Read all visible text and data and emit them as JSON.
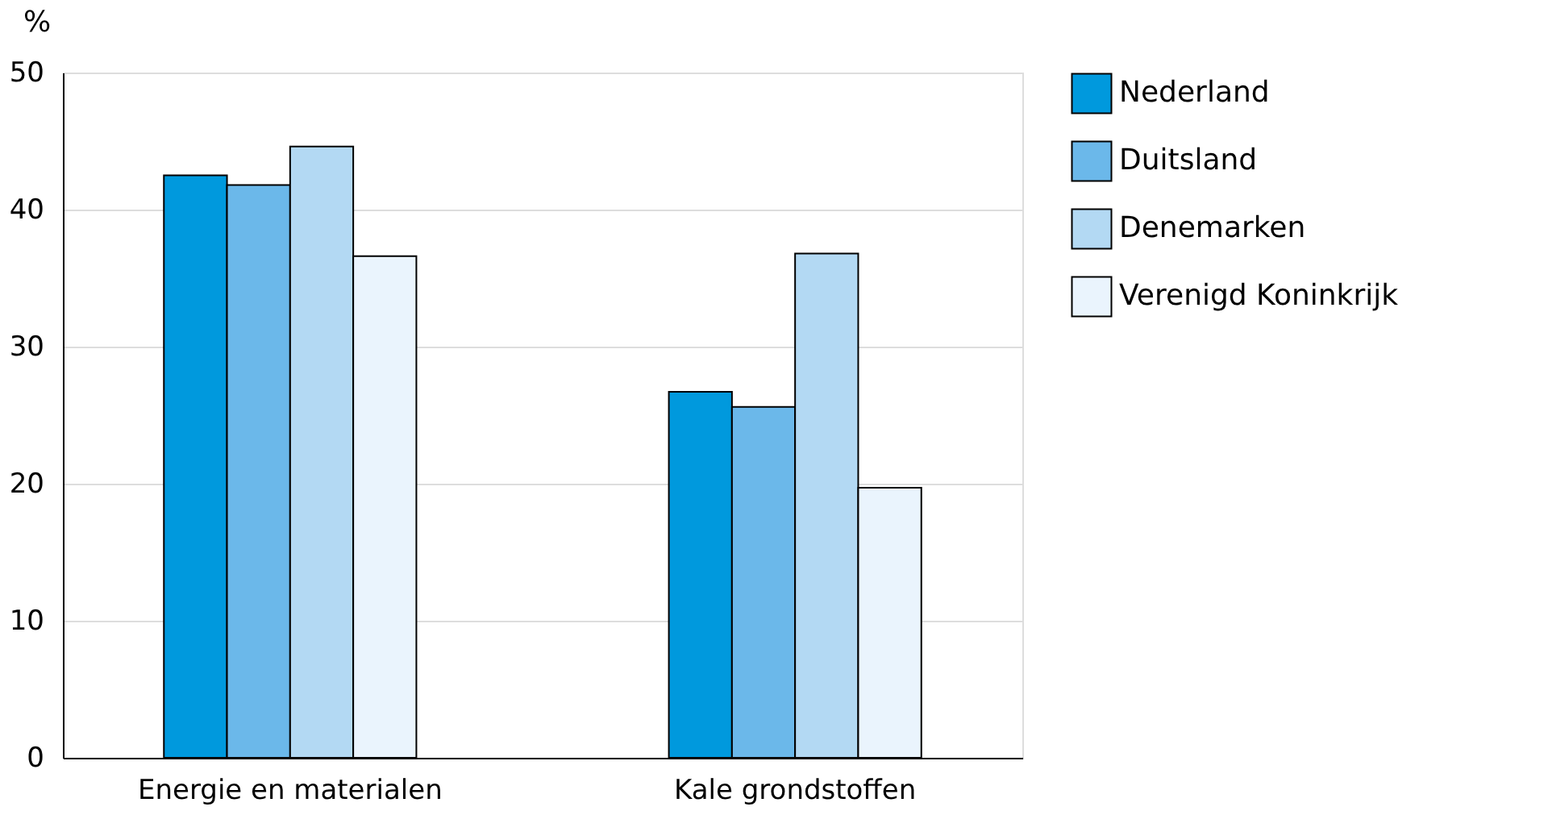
{
  "chart_data": {
    "type": "bar",
    "ylabel": "%",
    "categories": [
      "Energie en materialen",
      "Kale grondstoffen"
    ],
    "series": [
      {
        "name": "Nederland",
        "color": "#0099dd",
        "values": [
          42.5,
          26.7
        ]
      },
      {
        "name": "Duitsland",
        "color": "#6bb8ea",
        "values": [
          41.8,
          25.6
        ]
      },
      {
        "name": "Denemarken",
        "color": "#b3d9f3",
        "values": [
          44.6,
          36.8
        ]
      },
      {
        "name": "Verenigd Koninkrijk",
        "color": "#eaf4fd",
        "values": [
          36.6,
          19.7
        ]
      }
    ],
    "ylim": [
      0,
      50
    ],
    "yticks": [
      0,
      10,
      20,
      30,
      40,
      50
    ],
    "grid": "y",
    "legend": "top right"
  }
}
